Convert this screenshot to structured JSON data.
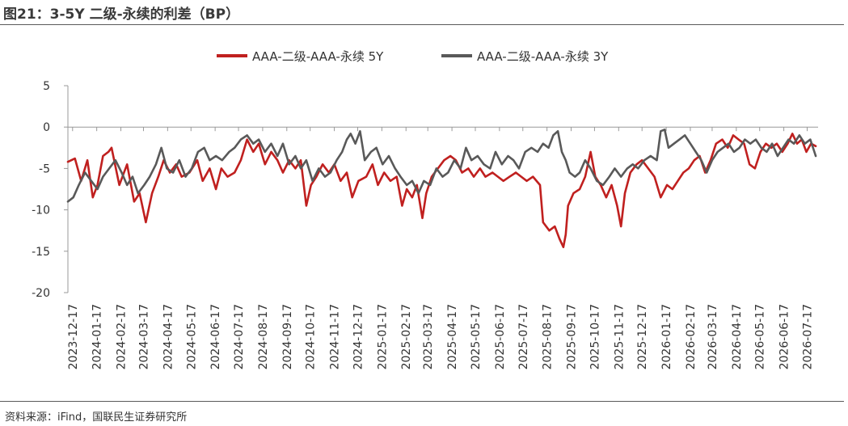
{
  "title": "图21：3-5Y 二级-永续的利差（BP）",
  "source": "资料来源：iFind，国联民生证券研究所",
  "chart_data": {
    "type": "line",
    "ylim": [
      -20,
      5
    ],
    "yticks": [
      5,
      0,
      -5,
      -10,
      -15,
      -20
    ],
    "xlim": [
      "2023-12-11",
      "2026-07-31"
    ],
    "xticks": [
      "2023-12-17",
      "2024-01-17",
      "2024-02-17",
      "2024-03-17",
      "2024-04-17",
      "2024-05-17",
      "2024-06-17",
      "2024-07-17",
      "2024-08-17",
      "2024-09-17",
      "2024-10-17",
      "2024-11-17",
      "2024-12-17",
      "2025-01-17",
      "2025-02-17",
      "2025-03-17",
      "2025-04-17",
      "2025-05-17",
      "2025-06-17",
      "2025-07-17",
      "2025-08-17",
      "2025-09-17",
      "2025-10-17",
      "2025-11-17",
      "2025-12-17",
      "2026-01-17",
      "2026-02-17",
      "2026-03-17",
      "2026-04-17",
      "2026-05-17",
      "2026-06-17",
      "2026-07-17"
    ],
    "legend_position": "top",
    "series": [
      {
        "name": "AAA-二级-AAA-永续 5Y",
        "color": "#c0201f",
        "points": [
          [
            "2023-12-11",
            -4.2
          ],
          [
            "2023-12-20",
            -3.8
          ],
          [
            "2023-12-28",
            -6.5
          ],
          [
            "2024-01-05",
            -4.0
          ],
          [
            "2024-01-12",
            -8.5
          ],
          [
            "2024-01-18",
            -7.0
          ],
          [
            "2024-01-25",
            -3.5
          ],
          [
            "2024-02-01",
            -3.0
          ],
          [
            "2024-02-05",
            -2.5
          ],
          [
            "2024-02-15",
            -7.0
          ],
          [
            "2024-02-25",
            -4.5
          ],
          [
            "2024-03-05",
            -9.0
          ],
          [
            "2024-03-12",
            -8.0
          ],
          [
            "2024-03-20",
            -11.5
          ],
          [
            "2024-03-28",
            -8.0
          ],
          [
            "2024-04-05",
            -6.0
          ],
          [
            "2024-04-12",
            -4.0
          ],
          [
            "2024-04-20",
            -5.5
          ],
          [
            "2024-04-28",
            -4.5
          ],
          [
            "2024-05-05",
            -6.0
          ],
          [
            "2024-05-15",
            -5.5
          ],
          [
            "2024-05-25",
            -4.0
          ],
          [
            "2024-06-01",
            -6.5
          ],
          [
            "2024-06-10",
            -5.0
          ],
          [
            "2024-06-18",
            -7.5
          ],
          [
            "2024-06-25",
            -5.0
          ],
          [
            "2024-07-03",
            -6.0
          ],
          [
            "2024-07-12",
            -5.5
          ],
          [
            "2024-07-20",
            -4.0
          ],
          [
            "2024-07-28",
            -1.5
          ],
          [
            "2024-08-05",
            -3.0
          ],
          [
            "2024-08-12",
            -2.0
          ],
          [
            "2024-08-20",
            -4.5
          ],
          [
            "2024-08-28",
            -3.0
          ],
          [
            "2024-09-05",
            -4.0
          ],
          [
            "2024-09-12",
            -5.5
          ],
          [
            "2024-09-20",
            -4.0
          ],
          [
            "2024-09-28",
            -5.0
          ],
          [
            "2024-10-05",
            -4.0
          ],
          [
            "2024-10-12",
            -9.5
          ],
          [
            "2024-10-18",
            -7.0
          ],
          [
            "2024-10-25",
            -6.0
          ],
          [
            "2024-11-02",
            -4.5
          ],
          [
            "2024-11-10",
            -5.5
          ],
          [
            "2024-11-17",
            -4.5
          ],
          [
            "2024-11-25",
            -6.5
          ],
          [
            "2024-12-03",
            -5.5
          ],
          [
            "2024-12-10",
            -8.5
          ],
          [
            "2024-12-18",
            -6.5
          ],
          [
            "2024-12-28",
            -6.0
          ],
          [
            "2025-01-05",
            -4.5
          ],
          [
            "2025-01-12",
            -7.0
          ],
          [
            "2025-01-20",
            -5.5
          ],
          [
            "2025-01-28",
            -6.5
          ],
          [
            "2025-02-05",
            -6.0
          ],
          [
            "2025-02-12",
            -9.5
          ],
          [
            "2025-02-18",
            -7.5
          ],
          [
            "2025-02-25",
            -8.5
          ],
          [
            "2025-03-03",
            -7.0
          ],
          [
            "2025-03-10",
            -11.0
          ],
          [
            "2025-03-15",
            -8.0
          ],
          [
            "2025-03-22",
            -6.0
          ],
          [
            "2025-03-30",
            -5.0
          ],
          [
            "2025-04-07",
            -4.0
          ],
          [
            "2025-04-15",
            -3.5
          ],
          [
            "2025-04-22",
            -4.0
          ],
          [
            "2025-04-30",
            -5.5
          ],
          [
            "2025-05-08",
            -5.0
          ],
          [
            "2025-05-15",
            -6.0
          ],
          [
            "2025-05-23",
            -5.0
          ],
          [
            "2025-05-30",
            -6.0
          ],
          [
            "2025-06-08",
            -5.5
          ],
          [
            "2025-06-15",
            -6.0
          ],
          [
            "2025-06-22",
            -6.5
          ],
          [
            "2025-06-30",
            -6.0
          ],
          [
            "2025-07-08",
            -5.5
          ],
          [
            "2025-07-15",
            -6.0
          ],
          [
            "2025-07-22",
            -6.5
          ],
          [
            "2025-07-30",
            -6.0
          ],
          [
            "2025-08-08",
            -7.0
          ],
          [
            "2025-08-12",
            -11.5
          ],
          [
            "2025-08-20",
            -12.5
          ],
          [
            "2025-08-27",
            -12.0
          ],
          [
            "2025-09-02",
            -13.5
          ],
          [
            "2025-09-07",
            -14.5
          ],
          [
            "2025-09-10",
            -13.0
          ],
          [
            "2025-09-13",
            -9.5
          ],
          [
            "2025-09-20",
            -8.0
          ],
          [
            "2025-09-28",
            -7.5
          ],
          [
            "2025-10-05",
            -6.0
          ],
          [
            "2025-10-12",
            -3.0
          ],
          [
            "2025-10-18",
            -6.0
          ],
          [
            "2025-10-25",
            -7.0
          ],
          [
            "2025-11-01",
            -8.5
          ],
          [
            "2025-11-08",
            -7.0
          ],
          [
            "2025-11-15",
            -9.5
          ],
          [
            "2025-11-20",
            -12.0
          ],
          [
            "2025-11-25",
            -8.0
          ],
          [
            "2025-12-02",
            -5.5
          ],
          [
            "2025-12-10",
            -4.5
          ],
          [
            "2025-12-17",
            -4.0
          ],
          [
            "2025-12-25",
            -5.0
          ],
          [
            "2026-01-02",
            -6.0
          ],
          [
            "2026-01-10",
            -8.5
          ],
          [
            "2026-01-18",
            -7.0
          ],
          [
            "2026-01-25",
            -7.5
          ],
          [
            "2026-02-01",
            -6.5
          ],
          [
            "2026-02-08",
            -5.5
          ],
          [
            "2026-02-15",
            -5.0
          ],
          [
            "2026-02-22",
            -4.0
          ],
          [
            "2026-03-01",
            -3.5
          ],
          [
            "2026-03-08",
            -5.5
          ],
          [
            "2026-03-15",
            -4.0
          ],
          [
            "2026-03-22",
            -2.0
          ],
          [
            "2026-03-30",
            -1.5
          ],
          [
            "2026-04-06",
            -2.5
          ],
          [
            "2026-04-13",
            -1.0
          ],
          [
            "2026-04-20",
            -1.5
          ],
          [
            "2026-04-27",
            -2.0
          ],
          [
            "2026-05-04",
            -4.5
          ],
          [
            "2026-05-11",
            -5.0
          ],
          [
            "2026-05-18",
            -3.0
          ],
          [
            "2026-05-25",
            -2.0
          ],
          [
            "2026-06-01",
            -2.5
          ],
          [
            "2026-06-08",
            -2.0
          ],
          [
            "2026-06-15",
            -3.0
          ],
          [
            "2026-06-22",
            -2.0
          ],
          [
            "2026-06-28",
            -0.8
          ],
          [
            "2026-07-04",
            -2.0
          ],
          [
            "2026-07-10",
            -1.5
          ],
          [
            "2026-07-16",
            -3.0
          ],
          [
            "2026-07-22",
            -2.0
          ],
          [
            "2026-07-28",
            -2.3
          ]
        ]
      },
      {
        "name": "AAA-二级-AAA-永续 3Y",
        "color": "#595959",
        "points": [
          [
            "2023-12-11",
            -9.0
          ],
          [
            "2023-12-18",
            -8.5
          ],
          [
            "2023-12-25",
            -7.0
          ],
          [
            "2024-01-02",
            -5.5
          ],
          [
            "2024-01-10",
            -6.5
          ],
          [
            "2024-01-18",
            -7.5
          ],
          [
            "2024-01-25",
            -6.0
          ],
          [
            "2024-02-02",
            -5.0
          ],
          [
            "2024-02-10",
            -4.0
          ],
          [
            "2024-02-18",
            -5.5
          ],
          [
            "2024-02-25",
            -7.0
          ],
          [
            "2024-03-03",
            -6.0
          ],
          [
            "2024-03-10",
            -8.0
          ],
          [
            "2024-03-18",
            -7.0
          ],
          [
            "2024-03-25",
            -6.0
          ],
          [
            "2024-04-02",
            -4.5
          ],
          [
            "2024-04-09",
            -2.5
          ],
          [
            "2024-04-16",
            -5.0
          ],
          [
            "2024-04-24",
            -5.5
          ],
          [
            "2024-05-02",
            -4.0
          ],
          [
            "2024-05-10",
            -6.0
          ],
          [
            "2024-05-18",
            -5.0
          ],
          [
            "2024-05-26",
            -3.0
          ],
          [
            "2024-06-03",
            -2.5
          ],
          [
            "2024-06-10",
            -4.0
          ],
          [
            "2024-06-18",
            -3.5
          ],
          [
            "2024-06-26",
            -4.0
          ],
          [
            "2024-07-05",
            -3.0
          ],
          [
            "2024-07-12",
            -2.5
          ],
          [
            "2024-07-20",
            -1.5
          ],
          [
            "2024-07-28",
            -1.0
          ],
          [
            "2024-08-05",
            -2.0
          ],
          [
            "2024-08-12",
            -1.5
          ],
          [
            "2024-08-20",
            -3.0
          ],
          [
            "2024-08-28",
            -2.0
          ],
          [
            "2024-09-05",
            -3.5
          ],
          [
            "2024-09-12",
            -2.0
          ],
          [
            "2024-09-20",
            -4.5
          ],
          [
            "2024-09-28",
            -3.5
          ],
          [
            "2024-10-05",
            -5.0
          ],
          [
            "2024-10-12",
            -4.0
          ],
          [
            "2024-10-20",
            -6.5
          ],
          [
            "2024-10-28",
            -5.0
          ],
          [
            "2024-11-05",
            -6.0
          ],
          [
            "2024-11-12",
            -5.5
          ],
          [
            "2024-11-20",
            -4.0
          ],
          [
            "2024-11-27",
            -3.0
          ],
          [
            "2024-12-03",
            -1.5
          ],
          [
            "2024-12-08",
            -0.8
          ],
          [
            "2024-12-14",
            -2.0
          ],
          [
            "2024-12-20",
            -0.5
          ],
          [
            "2024-12-26",
            -4.0
          ],
          [
            "2025-01-03",
            -3.0
          ],
          [
            "2025-01-10",
            -2.5
          ],
          [
            "2025-01-18",
            -4.5
          ],
          [
            "2025-01-26",
            -3.5
          ],
          [
            "2025-02-03",
            -5.0
          ],
          [
            "2025-02-10",
            -6.0
          ],
          [
            "2025-02-18",
            -7.0
          ],
          [
            "2025-02-25",
            -6.5
          ],
          [
            "2025-03-05",
            -8.0
          ],
          [
            "2025-03-12",
            -6.5
          ],
          [
            "2025-03-20",
            -7.0
          ],
          [
            "2025-03-28",
            -5.0
          ],
          [
            "2025-04-05",
            -6.0
          ],
          [
            "2025-04-12",
            -5.5
          ],
          [
            "2025-04-20",
            -4.0
          ],
          [
            "2025-04-28",
            -5.0
          ],
          [
            "2025-05-05",
            -2.5
          ],
          [
            "2025-05-12",
            -4.0
          ],
          [
            "2025-05-20",
            -3.5
          ],
          [
            "2025-05-28",
            -4.5
          ],
          [
            "2025-06-05",
            -5.0
          ],
          [
            "2025-06-12",
            -3.0
          ],
          [
            "2025-06-20",
            -4.5
          ],
          [
            "2025-06-28",
            -3.5
          ],
          [
            "2025-07-05",
            -4.0
          ],
          [
            "2025-07-12",
            -5.0
          ],
          [
            "2025-07-20",
            -3.0
          ],
          [
            "2025-07-28",
            -2.5
          ],
          [
            "2025-08-05",
            -3.0
          ],
          [
            "2025-08-12",
            -2.0
          ],
          [
            "2025-08-19",
            -2.5
          ],
          [
            "2025-08-25",
            -1.0
          ],
          [
            "2025-08-31",
            -0.5
          ],
          [
            "2025-09-05",
            -3.0
          ],
          [
            "2025-09-10",
            -4.0
          ],
          [
            "2025-09-15",
            -5.5
          ],
          [
            "2025-09-22",
            -6.0
          ],
          [
            "2025-09-28",
            -5.5
          ],
          [
            "2025-10-05",
            -4.0
          ],
          [
            "2025-10-12",
            -5.0
          ],
          [
            "2025-10-20",
            -6.5
          ],
          [
            "2025-10-28",
            -7.0
          ],
          [
            "2025-11-05",
            -6.0
          ],
          [
            "2025-11-12",
            -5.0
          ],
          [
            "2025-11-20",
            -6.0
          ],
          [
            "2025-11-28",
            -5.0
          ],
          [
            "2025-12-05",
            -4.5
          ],
          [
            "2025-12-12",
            -5.0
          ],
          [
            "2025-12-20",
            -4.0
          ],
          [
            "2025-12-28",
            -3.5
          ],
          [
            "2026-01-05",
            -4.0
          ],
          [
            "2026-01-10",
            -0.5
          ],
          [
            "2026-01-15",
            -0.3
          ],
          [
            "2026-01-20",
            -2.5
          ],
          [
            "2026-01-27",
            -2.0
          ],
          [
            "2026-02-03",
            -1.5
          ],
          [
            "2026-02-10",
            -1.0
          ],
          [
            "2026-02-17",
            -2.0
          ],
          [
            "2026-02-24",
            -3.0
          ],
          [
            "2026-03-03",
            -4.0
          ],
          [
            "2026-03-10",
            -5.5
          ],
          [
            "2026-03-17",
            -4.0
          ],
          [
            "2026-03-24",
            -3.0
          ],
          [
            "2026-03-31",
            -2.5
          ],
          [
            "2026-04-07",
            -2.0
          ],
          [
            "2026-04-14",
            -3.0
          ],
          [
            "2026-04-21",
            -2.5
          ],
          [
            "2026-04-28",
            -1.5
          ],
          [
            "2026-05-05",
            -2.0
          ],
          [
            "2026-05-12",
            -1.5
          ],
          [
            "2026-05-19",
            -2.5
          ],
          [
            "2026-05-26",
            -3.0
          ],
          [
            "2026-06-02",
            -2.0
          ],
          [
            "2026-06-09",
            -3.5
          ],
          [
            "2026-06-16",
            -2.5
          ],
          [
            "2026-06-23",
            -1.5
          ],
          [
            "2026-06-30",
            -2.0
          ],
          [
            "2026-07-07",
            -1.0
          ],
          [
            "2026-07-14",
            -2.0
          ],
          [
            "2026-07-21",
            -1.5
          ],
          [
            "2026-07-28",
            -3.5
          ]
        ]
      }
    ]
  }
}
